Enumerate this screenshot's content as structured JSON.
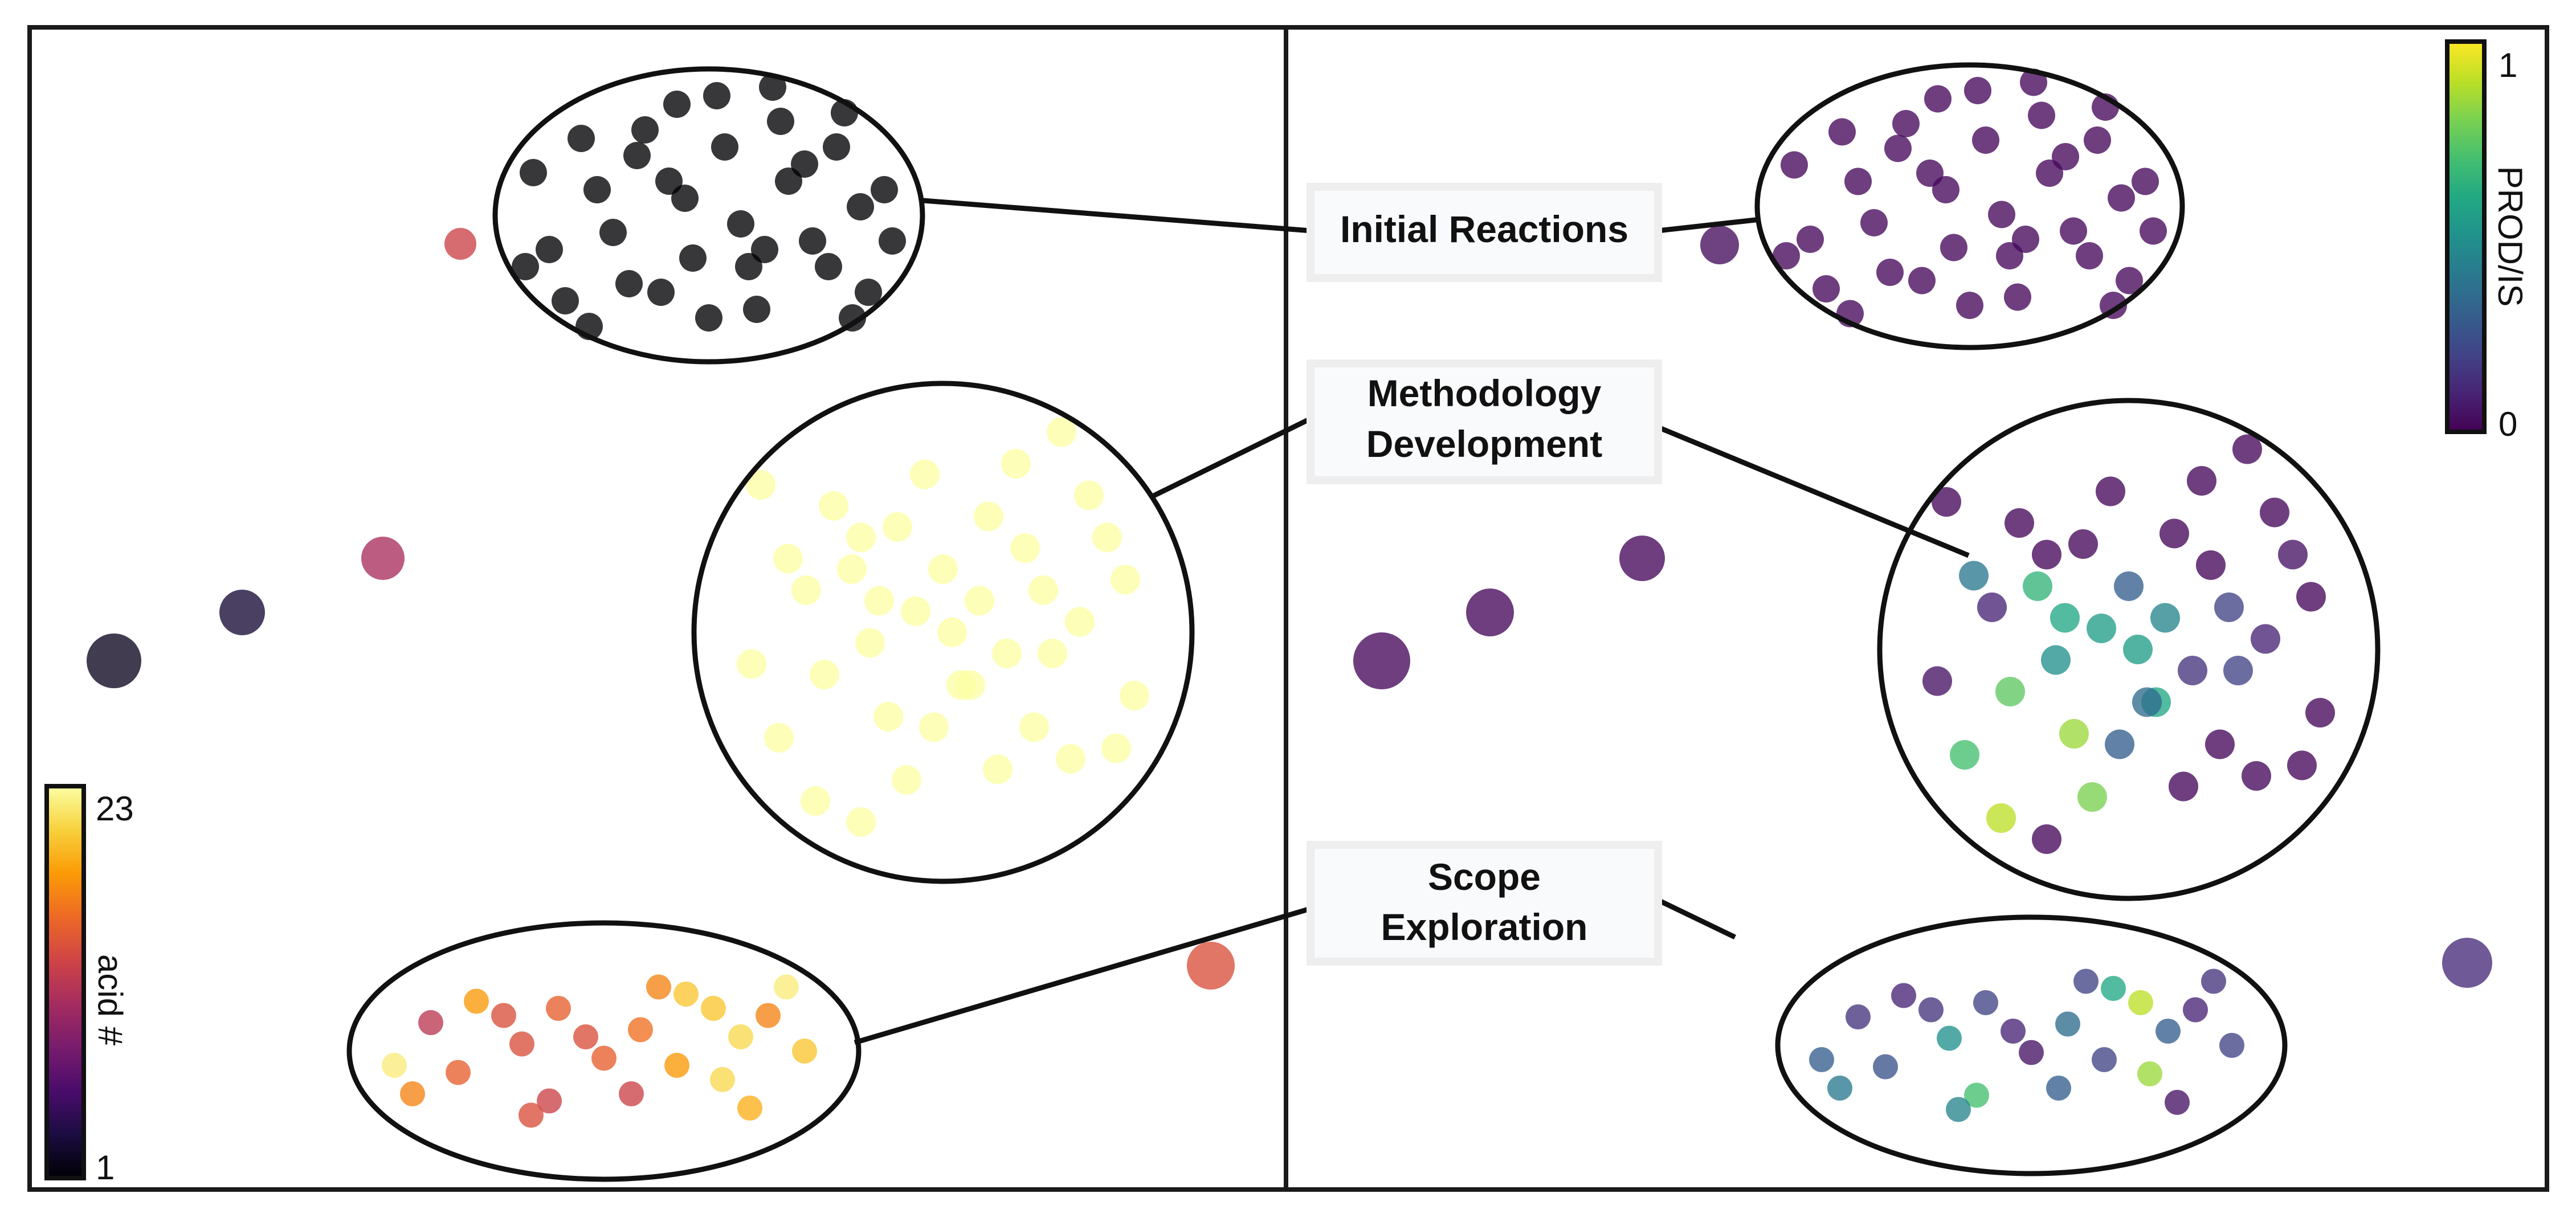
{
  "chart_data": [
    {
      "type": "scatter",
      "panel": "left",
      "colorbar": {
        "label": "acid #",
        "min_label": "1",
        "max_label": "23",
        "range": [
          1,
          23
        ],
        "colormap": "inferno",
        "stops": [
          "#000004",
          "#1b0c41",
          "#4a0c6b",
          "#781c6d",
          "#a52c60",
          "#cf4446",
          "#ed6925",
          "#fb9b06",
          "#f7d13d",
          "#fcffa4"
        ]
      },
      "clusters": [
        {
          "name": "initial-reactions",
          "x": [
            -2.2,
            -1.6,
            -0.9,
            -0.3,
            0.4,
            1.0,
            1.6,
            2.2,
            -2.0,
            -1.2,
            -0.5,
            0.2,
            0.9,
            1.5,
            2.0,
            -1.8,
            -1.0,
            -0.2,
            0.6,
            1.3,
            1.9,
            -2.3,
            -1.4,
            -0.6,
            0.1,
            0.8,
            1.7,
            2.3,
            -1.5,
            -0.8,
            0.0,
            0.7,
            1.2,
            -0.4,
            0.5,
            1.8
          ],
          "y": [
            0.5,
            0.9,
            0.7,
            0.2,
            -0.1,
            0.4,
            0.8,
            0.3,
            -0.4,
            -0.2,
            0.4,
            0.8,
            1.1,
            -0.6,
            -0.9,
            -1.0,
            -0.8,
            -0.5,
            -1.1,
            -0.3,
            0.1,
            -0.6,
            0.3,
            -0.9,
            1.4,
            1.5,
            1.2,
            -0.3,
            -1.3,
            1.0,
            -1.2,
            -0.4,
            0.6,
            1.3,
            -0.6,
            -1.2
          ],
          "acid": 1
        },
        {
          "name": "methodology-development",
          "x": [
            -2.1,
            -1.5,
            -0.9,
            -0.3,
            0.3,
            0.9,
            1.5,
            2.1,
            -1.8,
            -1.2,
            -0.6,
            0.0,
            0.6,
            1.2,
            1.8,
            -1.4,
            -0.8,
            -0.2,
            0.4,
            1.0,
            1.6,
            -1.0,
            -0.4,
            0.2,
            0.8,
            1.4,
            -1.7,
            -0.7,
            0.5,
            1.1,
            -0.1,
            0.7,
            -1.3,
            1.9,
            -0.5,
            0.1,
            1.3,
            -2.0,
            2.0,
            -0.9
          ],
          "y": [
            -0.3,
            0.4,
            0.9,
            0.2,
            -0.5,
            0.8,
            0.1,
            -0.6,
            -1.0,
            1.2,
            -0.8,
            0.6,
            -1.3,
            -0.2,
            0.9,
            -1.6,
            -0.1,
            1.5,
            0.3,
            -0.9,
            1.3,
            0.6,
            -1.4,
            -0.5,
            1.6,
            -1.2,
            0.7,
            0.3,
            1.1,
            0.4,
            -0.9,
            -0.2,
            -0.4,
            -1.1,
            1.0,
            0.0,
            1.9,
            1.4,
            0.5,
            -1.8
          ],
          "acid": 23
        },
        {
          "name": "scope-exploration",
          "x": [
            -2.3,
            -1.9,
            -1.4,
            -0.9,
            -0.5,
            0.0,
            0.4,
            0.9,
            1.3,
            1.8,
            2.2,
            -2.1,
            -1.6,
            -1.1,
            -0.6,
            -0.2,
            0.3,
            0.8,
            1.2,
            1.6,
            2.0,
            -0.8,
            0.6,
            1.5
          ],
          "y": [
            -0.2,
            0.4,
            0.7,
            0.1,
            0.6,
            -0.1,
            0.3,
            0.8,
            -0.4,
            0.5,
            0.0,
            -0.6,
            -0.3,
            0.5,
            -0.7,
            0.2,
            -0.6,
            -0.2,
            0.6,
            -0.8,
            0.9,
            -0.9,
            0.9,
            0.2
          ],
          "acid": [
            22,
            12,
            18,
            14,
            15,
            15,
            16,
            20,
            21,
            17,
            20,
            17,
            15,
            14,
            13,
            14,
            13,
            18,
            20,
            19,
            22,
            14,
            17,
            21
          ]
        },
        {
          "name": "outlier-1",
          "x": [
            0.0
          ],
          "y": [
            0.0
          ],
          "acid": 13
        },
        {
          "name": "outlier-2",
          "x": [
            0.0
          ],
          "y": [
            0.0
          ],
          "acid": 11
        },
        {
          "name": "outlier-3",
          "x": [
            0.0
          ],
          "y": [
            0.0
          ],
          "acid": 3
        },
        {
          "name": "outlier-4",
          "x": [
            0.0
          ],
          "y": [
            0.0
          ],
          "acid": 2
        },
        {
          "name": "outlier-5",
          "x": [
            0.0
          ],
          "y": [
            0.0
          ],
          "acid": 14
        }
      ]
    },
    {
      "type": "scatter",
      "panel": "right",
      "colorbar": {
        "label": "PROD/IS",
        "min_label": "0",
        "max_label": "1",
        "range": [
          0,
          1
        ],
        "colormap": "viridis",
        "stops": [
          "#440154",
          "#482475",
          "#414487",
          "#355f8d",
          "#2a788e",
          "#21918c",
          "#22a884",
          "#44bf70",
          "#7ad151",
          "#bddf26",
          "#fde725"
        ]
      },
      "clusters": [
        {
          "name": "initial-reactions",
          "x": [
            -2.2,
            -1.6,
            -0.9,
            -0.3,
            0.4,
            1.0,
            1.6,
            2.2,
            -2.0,
            -1.2,
            -0.5,
            0.2,
            0.9,
            1.5,
            2.0,
            -1.8,
            -1.0,
            -0.2,
            0.6,
            1.3,
            1.9,
            -2.3,
            -1.4,
            -0.6,
            0.1,
            0.8,
            1.7,
            2.3,
            -1.5,
            -0.8,
            0.0,
            0.7,
            1.2,
            -0.4,
            0.5,
            1.8
          ],
          "y": [
            0.5,
            0.9,
            0.7,
            0.2,
            -0.1,
            0.4,
            0.8,
            0.3,
            -0.4,
            -0.2,
            0.4,
            0.8,
            1.1,
            -0.6,
            -0.9,
            -1.0,
            -0.8,
            -0.5,
            -1.1,
            -0.3,
            0.1,
            -0.6,
            0.3,
            -0.9,
            1.4,
            1.5,
            1.2,
            -0.3,
            -1.3,
            1.0,
            -1.2,
            -0.4,
            0.6,
            1.3,
            -0.6,
            -1.2
          ],
          "value": 0.02
        },
        {
          "name": "methodology-development",
          "x": [
            -2.1,
            -1.5,
            -0.9,
            -0.3,
            0.3,
            0.9,
            1.5,
            2.1,
            -1.8,
            -1.2,
            -0.6,
            0.0,
            0.6,
            1.2,
            1.8,
            -1.4,
            -0.8,
            -0.2,
            0.4,
            1.0,
            1.6,
            -1.0,
            -0.4,
            0.2,
            0.8,
            1.4,
            -1.7,
            -0.7,
            0.5,
            1.1,
            -0.1,
            0.7,
            -1.3,
            1.9,
            -0.5,
            0.1,
            1.3,
            -2.0,
            2.0,
            -0.9
          ],
          "y": [
            -0.3,
            0.4,
            0.9,
            0.2,
            -0.5,
            0.8,
            0.1,
            -0.6,
            -1.0,
            1.2,
            -0.8,
            0.6,
            -1.3,
            -0.2,
            0.9,
            -1.6,
            -0.1,
            1.5,
            0.3,
            -0.9,
            1.3,
            0.6,
            -1.4,
            -0.5,
            1.6,
            -1.2,
            0.7,
            0.3,
            1.1,
            0.4,
            -0.9,
            -0.2,
            -0.4,
            -1.1,
            1.0,
            0.0,
            1.9,
            1.4,
            0.5,
            -1.8
          ],
          "value": [
            0.05,
            0.1,
            0.02,
            0.55,
            0.6,
            0.02,
            0.1,
            0.02,
            0.7,
            0.02,
            0.85,
            0.3,
            0.02,
            0.2,
            0.05,
            0.9,
            0.5,
            0.02,
            0.45,
            0.02,
            0.02,
            0.65,
            0.8,
            0.35,
            0.02,
            0.02,
            0.4,
            0.6,
            0.02,
            0.2,
            0.3,
            0.15,
            0.75,
            0.02,
            0.02,
            0.55,
            0.02,
            0.02,
            0.02,
            0.02
          ]
        },
        {
          "name": "scope-exploration",
          "x": [
            -2.3,
            -1.9,
            -1.4,
            -0.9,
            -0.5,
            0.0,
            0.4,
            0.9,
            1.3,
            1.8,
            2.2,
            -2.1,
            -1.6,
            -1.1,
            -0.6,
            -0.2,
            0.3,
            0.8,
            1.2,
            1.6,
            2.0,
            -0.8,
            0.6,
            1.5
          ],
          "y": [
            -0.2,
            0.4,
            0.7,
            0.1,
            0.6,
            -0.1,
            0.3,
            0.8,
            -0.4,
            0.5,
            0.0,
            -0.6,
            -0.3,
            0.5,
            -0.7,
            0.2,
            -0.6,
            -0.2,
            0.6,
            -0.8,
            0.9,
            -0.9,
            0.9,
            0.2
          ],
          "value": [
            0.3,
            0.15,
            0.1,
            0.5,
            0.2,
            0.05,
            0.35,
            0.6,
            0.85,
            0.1,
            0.2,
            0.4,
            0.25,
            0.15,
            0.7,
            0.1,
            0.3,
            0.2,
            0.9,
            0.05,
            0.15,
            0.45,
            0.2,
            0.3
          ]
        },
        {
          "name": "outlier-1",
          "x": [
            0.0
          ],
          "y": [
            0.0
          ],
          "value": 0.03
        },
        {
          "name": "outlier-2",
          "x": [
            0.0
          ],
          "y": [
            0.0
          ],
          "value": 0.02
        },
        {
          "name": "outlier-3",
          "x": [
            0.0
          ],
          "y": [
            0.0
          ],
          "value": 0.02
        },
        {
          "name": "outlier-4",
          "x": [
            0.0
          ],
          "y": [
            0.0
          ],
          "value": 0.02
        },
        {
          "name": "outlier-5",
          "x": [
            0.0
          ],
          "y": [
            0.0
          ],
          "value": 0.12
        }
      ]
    }
  ],
  "annotations": {
    "initial_reactions": "Initial Reactions",
    "methodology_line1": "Methodology",
    "methodology_line2": "Development",
    "scope_line1": "Scope",
    "scope_line2": "Exploration"
  }
}
